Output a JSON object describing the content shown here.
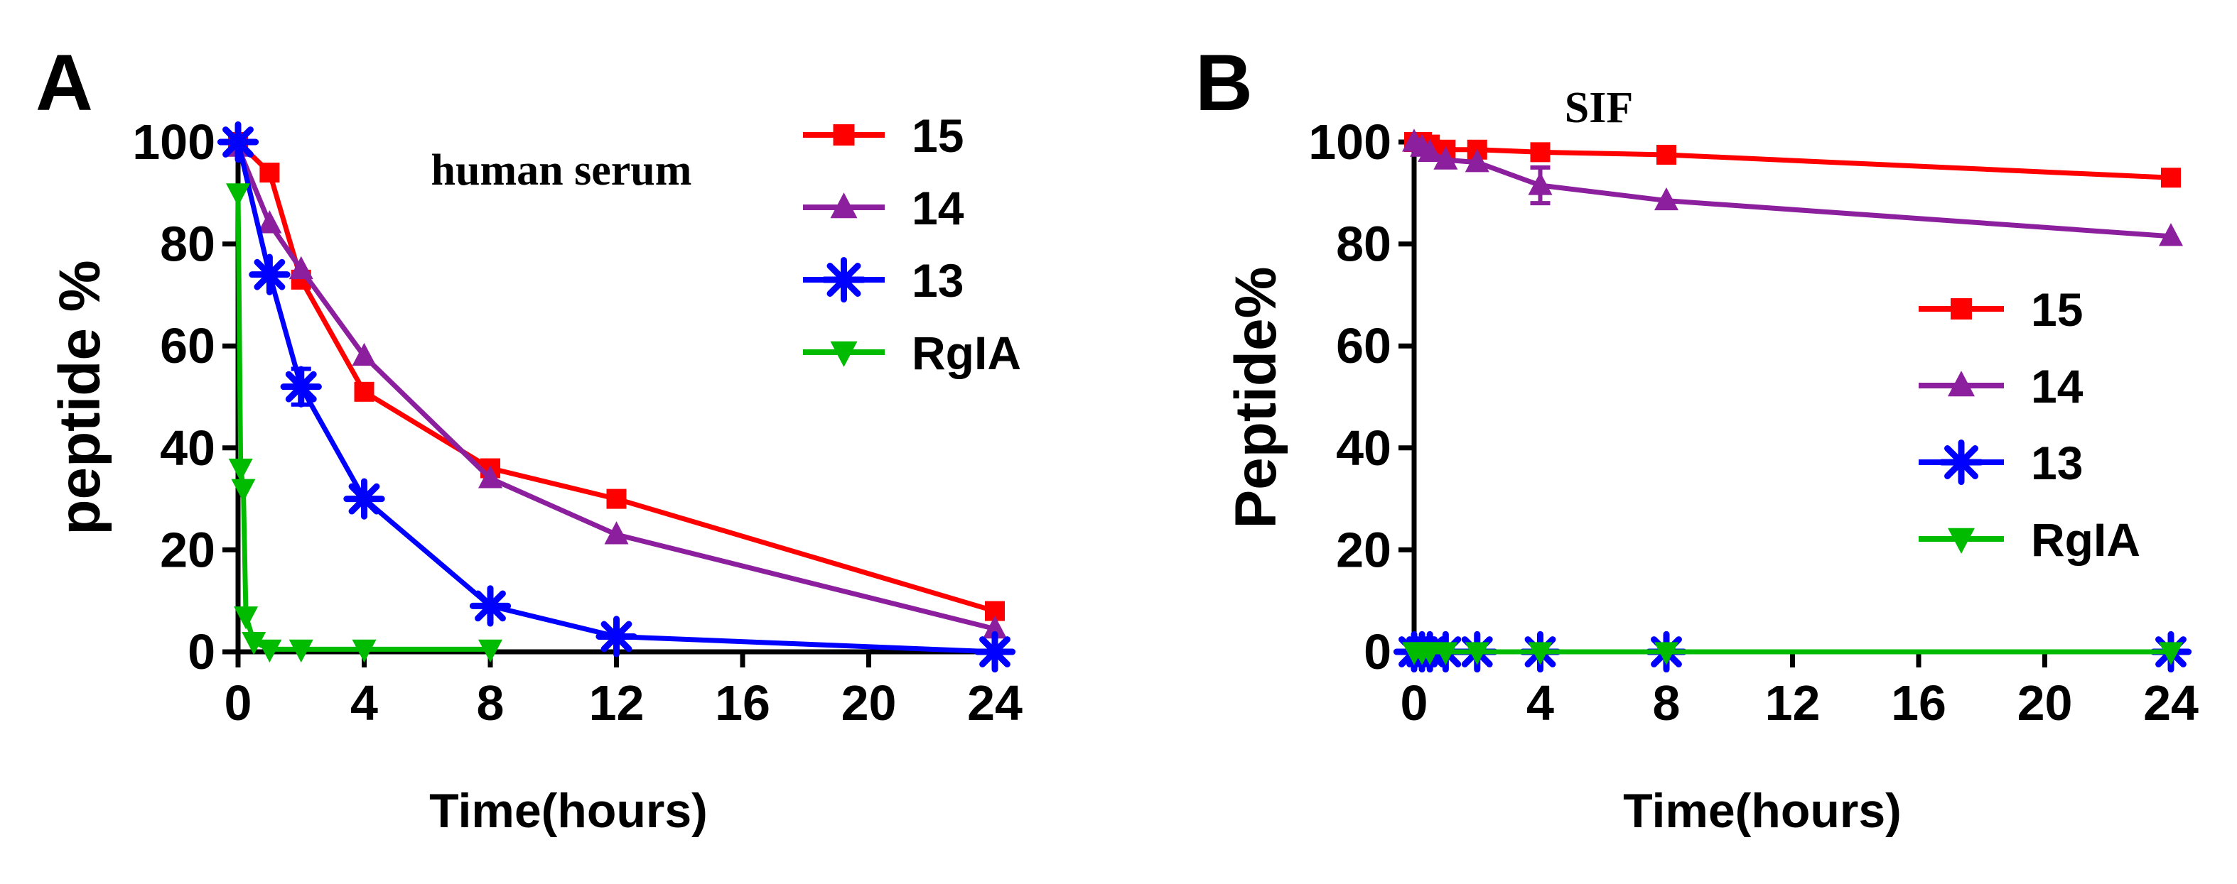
{
  "chart_data": [
    {
      "type": "line",
      "panel_label": "A",
      "title": "human serum",
      "xlabel": "Time(hours)",
      "ylabel": "peptide %",
      "xlim": [
        0,
        24
      ],
      "ylim": [
        0,
        100
      ],
      "xticks": [
        0,
        4,
        8,
        12,
        16,
        20,
        24
      ],
      "yticks": [
        0,
        20,
        40,
        60,
        80,
        100
      ],
      "legend_position": "top-right",
      "series": [
        {
          "name": "15",
          "color": "#ff0000",
          "marker": "square",
          "x": [
            0,
            1,
            2,
            4,
            8,
            12,
            24
          ],
          "y": [
            100,
            94,
            73,
            51,
            36,
            30,
            8
          ],
          "err": [
            0,
            0,
            0,
            0,
            0,
            0,
            0
          ]
        },
        {
          "name": "14",
          "color": "#8b1f9e",
          "marker": "triangle-up",
          "x": [
            0,
            1,
            2,
            4,
            8,
            12,
            24
          ],
          "y": [
            99,
            84,
            75,
            58,
            34,
            23,
            4.5
          ],
          "err": [
            0,
            0,
            0,
            0,
            0,
            0,
            0
          ]
        },
        {
          "name": "13",
          "color": "#0000ff",
          "marker": "asterisk",
          "x": [
            0,
            1,
            2,
            4,
            8,
            12,
            24
          ],
          "y": [
            100,
            74,
            52,
            30,
            9,
            3,
            0
          ],
          "err": [
            0,
            0,
            3.5,
            0,
            0,
            0,
            0
          ]
        },
        {
          "name": "RgIA",
          "color": "#00bb00",
          "marker": "triangle-down",
          "x": [
            0,
            0.083,
            0.167,
            0.25,
            0.5,
            1,
            2,
            4,
            8
          ],
          "y": [
            90,
            36,
            32,
            7,
            2,
            0.5,
            0.5,
            0.5,
            0.5
          ],
          "err": [
            0,
            0,
            0,
            0,
            0,
            0,
            0,
            0,
            0
          ]
        }
      ]
    },
    {
      "type": "line",
      "panel_label": "B",
      "title": "SIF",
      "xlabel": "Time(hours)",
      "ylabel": "Peptide%",
      "xlim": [
        0,
        24
      ],
      "ylim": [
        0,
        100
      ],
      "xticks": [
        0,
        4,
        8,
        12,
        16,
        20,
        24
      ],
      "yticks": [
        0,
        20,
        40,
        60,
        80,
        100
      ],
      "legend_position": "right",
      "series": [
        {
          "name": "15",
          "color": "#ff0000",
          "marker": "square",
          "x": [
            0,
            0.25,
            0.5,
            1,
            2,
            4,
            8,
            24
          ],
          "y": [
            100,
            100,
            99.5,
            98.5,
            98.5,
            98,
            97.5,
            93
          ],
          "err": [
            0,
            0,
            0,
            0,
            0,
            0,
            0,
            0
          ]
        },
        {
          "name": "14",
          "color": "#8b1f9e",
          "marker": "triangle-up",
          "x": [
            0,
            0.25,
            0.5,
            1,
            2,
            4,
            8,
            24
          ],
          "y": [
            100,
            99,
            98,
            96.5,
            96,
            91.5,
            88.5,
            81.5
          ],
          "err": [
            0,
            0,
            0,
            0,
            0,
            3.5,
            0,
            0
          ]
        },
        {
          "name": "13",
          "color": "#0000ff",
          "marker": "asterisk",
          "x": [
            0,
            0.25,
            0.5,
            1,
            2,
            4,
            8,
            24
          ],
          "y": [
            0,
            0,
            0,
            0,
            0,
            0,
            0,
            0
          ],
          "err": [
            0,
            0,
            0,
            0,
            0,
            0,
            0,
            0
          ]
        },
        {
          "name": "RgIA",
          "color": "#00bb00",
          "marker": "triangle-down",
          "x": [
            0,
            0.25,
            0.5,
            1,
            2,
            4,
            8,
            24
          ],
          "y": [
            0,
            0,
            0,
            0,
            0,
            0,
            0,
            0
          ],
          "err": [
            0,
            0,
            0,
            0,
            0,
            0,
            0,
            0
          ]
        }
      ]
    }
  ]
}
